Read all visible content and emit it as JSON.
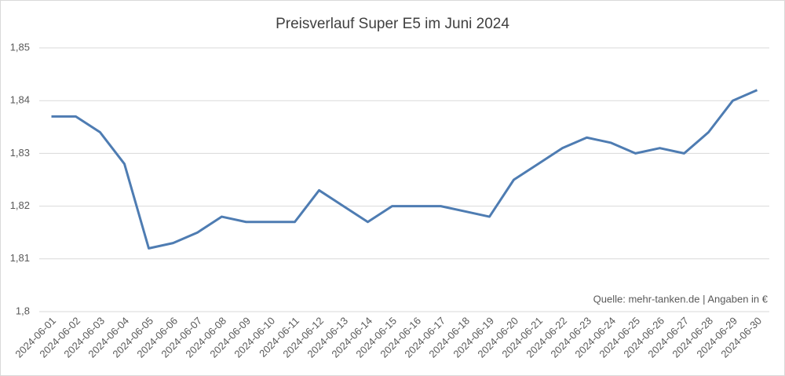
{
  "chart_data": {
    "type": "line",
    "title": "Preisverlauf Super E5 im Juni 2024",
    "annotation": "Quelle: mehr-tanken.de | Angaben in €",
    "x": [
      "2024-06-01",
      "2024-06-02",
      "2024-06-03",
      "2024-06-04",
      "2024-06-05",
      "2024-06-06",
      "2024-06-07",
      "2024-06-08",
      "2024-06-09",
      "2024-06-10",
      "2024-06-11",
      "2024-06-12",
      "2024-06-13",
      "2024-06-14",
      "2024-06-15",
      "2024-06-16",
      "2024-06-17",
      "2024-06-18",
      "2024-06-19",
      "2024-06-20",
      "2024-06-21",
      "2024-06-22",
      "2024-06-23",
      "2024-06-24",
      "2024-06-25",
      "2024-06-26",
      "2024-06-27",
      "2024-06-28",
      "2024-06-29",
      "2024-06-30"
    ],
    "values": [
      1.837,
      1.837,
      1.834,
      1.828,
      1.812,
      1.813,
      1.815,
      1.818,
      1.817,
      1.817,
      1.817,
      1.823,
      1.82,
      1.817,
      1.82,
      1.82,
      1.82,
      1.819,
      1.818,
      1.825,
      1.828,
      1.831,
      1.833,
      1.832,
      1.83,
      1.831,
      1.83,
      1.834,
      1.84,
      1.842
    ],
    "color": "#4e7cb2",
    "ylim": [
      1.8,
      1.85
    ],
    "yticks": [
      {
        "value": 1.8,
        "label": "1,8"
      },
      {
        "value": 1.81,
        "label": "1,81"
      },
      {
        "value": 1.82,
        "label": "1,82"
      },
      {
        "value": 1.83,
        "label": "1,83"
      },
      {
        "value": 1.84,
        "label": "1,84"
      },
      {
        "value": 1.85,
        "label": "1,85"
      }
    ],
    "grid": true
  }
}
